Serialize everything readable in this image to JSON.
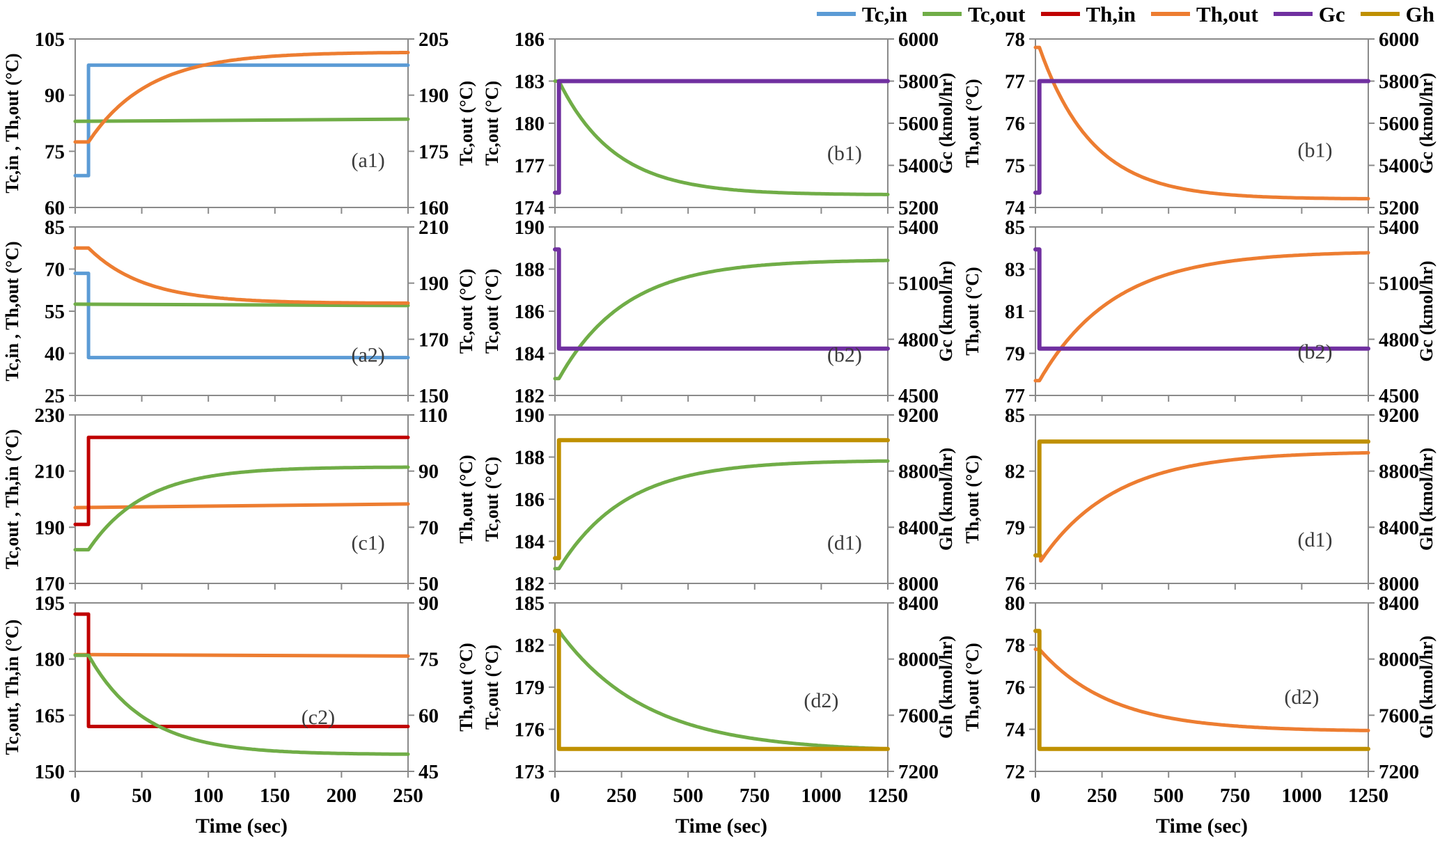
{
  "legend": {
    "items": [
      {
        "name": "Tc,in",
        "color": "#5B9BD5"
      },
      {
        "name": "Tc,out",
        "color": "#70AD47"
      },
      {
        "name": "Th,in",
        "color": "#C00000"
      },
      {
        "name": "Th,out",
        "color": "#ED7D31"
      },
      {
        "name": "Gc",
        "color": "#7030A0"
      },
      {
        "name": "Gh",
        "color": "#BF9000"
      }
    ]
  },
  "colors": {
    "Tc,in": "#5B9BD5",
    "Tc,out": "#70AD47",
    "Th,in": "#C00000",
    "Th,out": "#ED7D31",
    "Gc": "#7030A0",
    "Gh": "#BF9000",
    "axis": "#8a8a8a"
  },
  "xlabel": "Time (sec)",
  "chart_data": [
    {
      "id": "a1",
      "type": "line",
      "annotation": "(a1)",
      "ann_pos": [
        0.88,
        0.76
      ],
      "x": {
        "min": 0,
        "max": 250,
        "ticks": [
          0,
          50,
          100,
          150,
          200,
          250
        ],
        "labeled": false
      },
      "left": {
        "label": "Tc,in , Th,out (°C)",
        "min": 60,
        "max": 105,
        "ticks": [
          105,
          90,
          75,
          60
        ]
      },
      "right": {
        "label": "Tc,out (°C)",
        "min": 160,
        "max": 205,
        "ticks": [
          205,
          190,
          175,
          160
        ]
      },
      "series": [
        {
          "name": "Tc,in",
          "axis": "left",
          "kind": "step",
          "t0": 10,
          "v_pre": 68.5,
          "v_post": 98
        },
        {
          "name": "Tc,out",
          "axis": "right",
          "kind": "trend",
          "v_pre": 183,
          "v_post": 183.6
        },
        {
          "name": "Th,out",
          "axis": "left",
          "kind": "exp",
          "t0": 10,
          "v_pre": 77.5,
          "v_post": 101.5,
          "tau": 45
        }
      ]
    },
    {
      "id": "b1-mid",
      "type": "line",
      "annotation": "(b1)",
      "ann_pos": [
        0.87,
        0.72
      ],
      "x": {
        "min": 0,
        "max": 1250,
        "ticks": [
          0,
          250,
          500,
          750,
          1000,
          1250
        ],
        "labeled": false
      },
      "left": {
        "label": "Tc,out (°C)",
        "min": 174,
        "max": 186,
        "ticks": [
          186,
          183,
          180,
          177,
          174
        ]
      },
      "right": {
        "label": "Gc (kmol/hr)",
        "min": 5200,
        "max": 6000,
        "ticks": [
          6000,
          5800,
          5600,
          5400,
          5200
        ]
      },
      "series": [
        {
          "name": "Tc,out",
          "axis": "left",
          "kind": "exp",
          "t0": 15,
          "v_pre": 183,
          "v_post": 174.9,
          "tau": 210
        },
        {
          "name": "Gc",
          "axis": "right",
          "kind": "step",
          "t0": 15,
          "v_pre": 5270,
          "v_post": 5800
        }
      ]
    },
    {
      "id": "b1-right",
      "type": "line",
      "annotation": "(b1)",
      "ann_pos": [
        0.84,
        0.7
      ],
      "x": {
        "min": 0,
        "max": 1250,
        "ticks": [
          0,
          250,
          500,
          750,
          1000,
          1250
        ],
        "labeled": false
      },
      "left": {
        "label": "Th,out (°C)",
        "min": 74,
        "max": 78,
        "ticks": [
          78,
          77,
          76,
          75,
          74
        ]
      },
      "right": {
        "label": "Gc (kmol/hr)",
        "min": 5200,
        "max": 6000,
        "ticks": [
          6000,
          5800,
          5600,
          5400,
          5200
        ]
      },
      "series": [
        {
          "name": "Th,out",
          "axis": "left",
          "kind": "exp",
          "t0": 15,
          "v_pre": 77.8,
          "v_post": 74.2,
          "tau": 200
        },
        {
          "name": "Gc",
          "axis": "right",
          "kind": "step",
          "t0": 15,
          "v_pre": 5270,
          "v_post": 5800
        }
      ]
    },
    {
      "id": "a2",
      "type": "line",
      "annotation": "(a2)",
      "ann_pos": [
        0.88,
        0.8
      ],
      "x": {
        "min": 0,
        "max": 250,
        "ticks": [
          0,
          50,
          100,
          150,
          200,
          250
        ],
        "labeled": false
      },
      "left": {
        "label": "Tc,in , Th,out (°C)",
        "min": 25,
        "max": 85,
        "ticks": [
          85,
          70,
          55,
          40,
          25
        ]
      },
      "right": {
        "label": "Tc,out (°C)",
        "min": 150,
        "max": 210,
        "ticks": [
          210,
          190,
          170,
          150
        ]
      },
      "series": [
        {
          "name": "Tc,in",
          "axis": "left",
          "kind": "step",
          "t0": 10,
          "v_pre": 68.5,
          "v_post": 38.5
        },
        {
          "name": "Tc,out",
          "axis": "right",
          "kind": "trend",
          "v_pre": 182.5,
          "v_post": 182
        },
        {
          "name": "Th,out",
          "axis": "left",
          "kind": "exp",
          "t0": 10,
          "v_pre": 77.5,
          "v_post": 57.8,
          "tau": 42
        }
      ]
    },
    {
      "id": "b2-mid",
      "type": "line",
      "annotation": "(b2)",
      "ann_pos": [
        0.87,
        0.8
      ],
      "x": {
        "min": 0,
        "max": 1250,
        "ticks": [
          0,
          250,
          500,
          750,
          1000,
          1250
        ],
        "labeled": false
      },
      "left": {
        "label": "Tc,out (°C)",
        "min": 182,
        "max": 190,
        "ticks": [
          190,
          188,
          186,
          184,
          182
        ]
      },
      "right": {
        "label": "Gc (kmol/hr)",
        "min": 4500,
        "max": 5400,
        "ticks": [
          5400,
          5100,
          4800,
          4500
        ]
      },
      "series": [
        {
          "name": "Tc,out",
          "axis": "left",
          "kind": "exp",
          "t0": 15,
          "v_pre": 182.8,
          "v_post": 188.45,
          "tau": 250
        },
        {
          "name": "Gc",
          "axis": "right",
          "kind": "step",
          "t0": 15,
          "v_pre": 5280,
          "v_post": 4750
        }
      ]
    },
    {
      "id": "b2-right",
      "type": "line",
      "annotation": "(b2)",
      "ann_pos": [
        0.84,
        0.78
      ],
      "x": {
        "min": 0,
        "max": 1250,
        "ticks": [
          0,
          250,
          500,
          750,
          1000,
          1250
        ],
        "labeled": false
      },
      "left": {
        "label": "Th,out (°C)",
        "min": 77,
        "max": 85,
        "ticks": [
          85,
          83,
          81,
          79,
          77
        ]
      },
      "right": {
        "label": "Gc (kmol/hr)",
        "min": 4500,
        "max": 5400,
        "ticks": [
          5400,
          5100,
          4800,
          4500
        ]
      },
      "series": [
        {
          "name": "Th,out",
          "axis": "left",
          "kind": "exp",
          "t0": 15,
          "v_pre": 77.7,
          "v_post": 83.85,
          "tau": 280
        },
        {
          "name": "Gc",
          "axis": "right",
          "kind": "step",
          "t0": 15,
          "v_pre": 5280,
          "v_post": 4750
        }
      ]
    },
    {
      "id": "c1",
      "type": "line",
      "annotation": "(c1)",
      "ann_pos": [
        0.88,
        0.8
      ],
      "x": {
        "min": 0,
        "max": 250,
        "ticks": [
          0,
          50,
          100,
          150,
          200,
          250
        ],
        "labeled": false
      },
      "left": {
        "label": "Tc,out , Th,in (°C)",
        "min": 170,
        "max": 230,
        "ticks": [
          230,
          210,
          190,
          170
        ]
      },
      "right": {
        "label": "Th,out (°C)",
        "min": 50,
        "max": 110,
        "ticks": [
          110,
          90,
          70,
          50
        ]
      },
      "series": [
        {
          "name": "Th,out",
          "axis": "right",
          "kind": "trend",
          "v_pre": 77,
          "v_post": 78.3
        },
        {
          "name": "Th,in",
          "axis": "left",
          "kind": "step",
          "t0": 10,
          "v_pre": 191,
          "v_post": 222
        },
        {
          "name": "Tc,out",
          "axis": "left",
          "kind": "exp",
          "t0": 10,
          "v_pre": 182,
          "v_post": 211.5,
          "tau": 42
        }
      ]
    },
    {
      "id": "d1-mid",
      "type": "line",
      "annotation": "(d1)",
      "ann_pos": [
        0.87,
        0.8
      ],
      "x": {
        "min": 0,
        "max": 1250,
        "ticks": [
          0,
          250,
          500,
          750,
          1000,
          1250
        ],
        "labeled": false
      },
      "left": {
        "label": "Tc,out (°C)",
        "min": 182,
        "max": 190,
        "ticks": [
          190,
          188,
          186,
          184,
          182
        ]
      },
      "right": {
        "label": "Gh (kmol/hr)",
        "min": 8000,
        "max": 9200,
        "ticks": [
          9200,
          8800,
          8400,
          8000
        ]
      },
      "series": [
        {
          "name": "Tc,out",
          "axis": "left",
          "kind": "exp",
          "t0": 15,
          "v_pre": 182.7,
          "v_post": 187.85,
          "tau": 250
        },
        {
          "name": "Gh",
          "axis": "right",
          "kind": "step",
          "t0": 15,
          "v_pre": 8180,
          "v_post": 9020
        }
      ]
    },
    {
      "id": "d1-right",
      "type": "line",
      "annotation": "(d1)",
      "ann_pos": [
        0.84,
        0.78
      ],
      "x": {
        "min": 0,
        "max": 1250,
        "ticks": [
          0,
          250,
          500,
          750,
          1000,
          1250
        ],
        "labeled": false
      },
      "left": {
        "label": "Th,out (°C)",
        "min": 76,
        "max": 85,
        "ticks": [
          85,
          82,
          79,
          76
        ]
      },
      "right": {
        "label": "Gh (kmol/hr)",
        "min": 8000,
        "max": 9200,
        "ticks": [
          9200,
          8800,
          8400,
          8000
        ]
      },
      "series": [
        {
          "name": "Th,out",
          "axis": "left",
          "kind": "exp",
          "t0": 20,
          "v_pre": 77.5,
          "v_dip": 77.2,
          "v_post": 83.05,
          "tau": 280
        },
        {
          "name": "Gh",
          "axis": "right",
          "kind": "step",
          "t0": 15,
          "v_pre": 8200,
          "v_post": 9010
        }
      ]
    },
    {
      "id": "c2",
      "type": "line",
      "annotation": "(c2)",
      "ann_pos": [
        0.73,
        0.72
      ],
      "x": {
        "min": 0,
        "max": 250,
        "ticks": [
          0,
          50,
          100,
          150,
          200,
          250
        ],
        "labeled": true
      },
      "left": {
        "label": "Tc,out, Th,in (°C)",
        "min": 150,
        "max": 195,
        "ticks": [
          195,
          180,
          165,
          150
        ]
      },
      "right": {
        "label": "Th,out (°C)",
        "min": 45,
        "max": 90,
        "ticks": [
          90,
          75,
          60,
          45
        ]
      },
      "series": [
        {
          "name": "Th,out",
          "axis": "right",
          "kind": "trend",
          "v_pre": 76.2,
          "v_post": 75.8
        },
        {
          "name": "Th,in",
          "axis": "left",
          "kind": "step",
          "t0": 10,
          "v_pre": 192,
          "v_post": 162
        },
        {
          "name": "Tc,out",
          "axis": "left",
          "kind": "exp",
          "t0": 10,
          "v_pre": 181,
          "v_post": 154.5,
          "tau": 42
        }
      ]
    },
    {
      "id": "d2-mid",
      "type": "line",
      "annotation": "(d2)",
      "ann_pos": [
        0.8,
        0.62
      ],
      "x": {
        "min": 0,
        "max": 1250,
        "ticks": [
          0,
          250,
          500,
          750,
          1000,
          1250
        ],
        "labeled": true
      },
      "left": {
        "label": "Tc,out (°C)",
        "min": 173,
        "max": 185,
        "ticks": [
          185,
          182,
          179,
          176,
          173
        ]
      },
      "right": {
        "label": "Gh (kmol/hr)",
        "min": 7200,
        "max": 8400,
        "ticks": [
          8400,
          8000,
          7600,
          7200
        ]
      },
      "series": [
        {
          "name": "Tc,out",
          "axis": "left",
          "kind": "exp",
          "t0": 15,
          "v_pre": 183,
          "v_post": 174.4,
          "tau": 330
        },
        {
          "name": "Gh",
          "axis": "right",
          "kind": "step",
          "t0": 15,
          "v_pre": 8200,
          "v_post": 7360
        }
      ]
    },
    {
      "id": "d2-right",
      "type": "line",
      "annotation": "(d2)",
      "ann_pos": [
        0.8,
        0.6
      ],
      "x": {
        "min": 0,
        "max": 1250,
        "ticks": [
          0,
          250,
          500,
          750,
          1000,
          1250
        ],
        "labeled": true
      },
      "left": {
        "label": "Th,out (°C)",
        "min": 72,
        "max": 80,
        "ticks": [
          80,
          78,
          76,
          74,
          72
        ]
      },
      "right": {
        "label": "Gh (kmol/hr)",
        "min": 7200,
        "max": 8400,
        "ticks": [
          8400,
          8000,
          7600,
          7200
        ]
      },
      "series": [
        {
          "name": "Th,out",
          "axis": "left",
          "kind": "exp",
          "t0": 15,
          "v_pre": 77.8,
          "v_post": 73.9,
          "tau": 270
        },
        {
          "name": "Gh",
          "axis": "right",
          "kind": "step",
          "t0": 15,
          "v_pre": 8200,
          "v_post": 7360
        }
      ]
    }
  ]
}
